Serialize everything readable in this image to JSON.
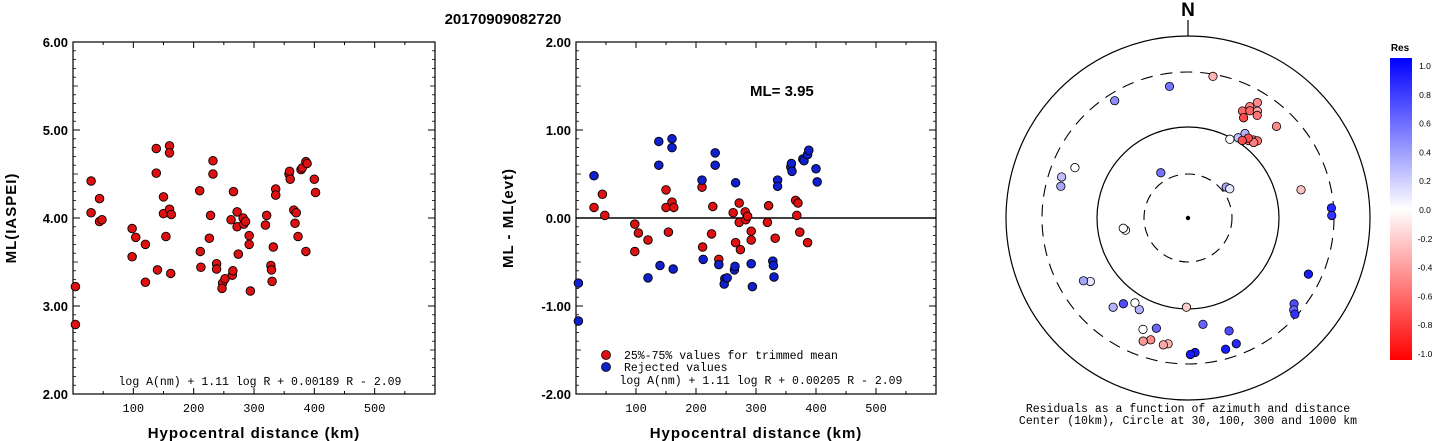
{
  "title": "20170909082720",
  "colors": {
    "accepted": "#dd1111",
    "rejected": "#1020cc",
    "axis": "#000000"
  },
  "chart_data": [
    {
      "type": "scatter",
      "xlabel": "Hypocentral distance (km)",
      "ylabel": "ML(IASPEI)",
      "xlim": [
        0,
        600
      ],
      "ylim": [
        2.0,
        6.0
      ],
      "xticks": [
        "100",
        "200",
        "300",
        "400",
        "500"
      ],
      "yticks": [
        "2.00",
        "3.00",
        "4.00",
        "5.00",
        "6.00"
      ],
      "formula": "log A(nm) + 1.11 log R + 0.00189 R - 2.09",
      "series": [
        {
          "points": [
            [
              4,
              3.22
            ],
            [
              4,
              2.79
            ],
            [
              30,
              4.42
            ],
            [
              30,
              4.06
            ],
            [
              44,
              4.22
            ],
            [
              44,
              3.96
            ],
            [
              48,
              3.98
            ],
            [
              98,
              3.88
            ],
            [
              98,
              3.56
            ],
            [
              104,
              3.78
            ],
            [
              120,
              3.7
            ],
            [
              120,
              3.27
            ],
            [
              138,
              4.79
            ],
            [
              138,
              4.51
            ],
            [
              140,
              3.41
            ],
            [
              150,
              4.24
            ],
            [
              150,
              4.05
            ],
            [
              154,
              3.79
            ],
            [
              160,
              4.82
            ],
            [
              160,
              4.74
            ],
            [
              160,
              4.1
            ],
            [
              163,
              4.04
            ],
            [
              162,
              3.37
            ],
            [
              210,
              4.31
            ],
            [
              211,
              3.62
            ],
            [
              212,
              3.44
            ],
            [
              228,
              4.03
            ],
            [
              226,
              3.77
            ],
            [
              232,
              4.65
            ],
            [
              232,
              4.5
            ],
            [
              238,
              3.48
            ],
            [
              238,
              3.42
            ],
            [
              248,
              3.26
            ],
            [
              247,
              3.2
            ],
            [
              252,
              3.31
            ],
            [
              262,
              3.98
            ],
            [
              264,
              3.35
            ],
            [
              265,
              3.4
            ],
            [
              266,
              4.3
            ],
            [
              272,
              4.07
            ],
            [
              272,
              3.9
            ],
            [
              274,
              3.59
            ],
            [
              282,
              4.0
            ],
            [
              283,
              3.93
            ],
            [
              286,
              3.96
            ],
            [
              292,
              3.8
            ],
            [
              292,
              3.7
            ],
            [
              294,
              3.17
            ],
            [
              319,
              3.92
            ],
            [
              321,
              4.03
            ],
            [
              328,
              3.46
            ],
            [
              329,
              3.41
            ],
            [
              330,
              3.28
            ],
            [
              336,
              4.33
            ],
            [
              336,
              4.26
            ],
            [
              332,
              3.67
            ],
            [
              358,
              4.5
            ],
            [
              359,
              4.53
            ],
            [
              360,
              4.44
            ],
            [
              366,
              4.09
            ],
            [
              370,
              4.06
            ],
            [
              368,
              3.94
            ],
            [
              373,
              3.79
            ],
            [
              378,
              4.55
            ],
            [
              380,
              4.57
            ],
            [
              386,
              4.64
            ],
            [
              388,
              4.62
            ],
            [
              386,
              3.62
            ],
            [
              400,
              4.44
            ],
            [
              402,
              4.29
            ]
          ]
        }
      ]
    },
    {
      "type": "scatter",
      "xlabel": "Hypocentral distance (km)",
      "ylabel": "ML - ML(evt)",
      "xlim": [
        0,
        600
      ],
      "ylim": [
        -2.0,
        2.0
      ],
      "xticks": [
        "100",
        "200",
        "300",
        "400",
        "500"
      ],
      "yticks": [
        "-2.00",
        "-1.00",
        "0.00",
        "1.00",
        "2.00"
      ],
      "annotation": "ML= 3.95",
      "formula": "log A(nm) + 1.11 log R + 0.00205 R - 2.09",
      "legend": [
        "25%-75% values for trimmed mean",
        "Rejected values"
      ],
      "series": [
        {
          "name": "25%-75% values for trimmed mean",
          "points": [
            [
              30,
              0.12
            ],
            [
              44,
              0.27
            ],
            [
              48,
              0.03
            ],
            [
              98,
              -0.07
            ],
            [
              98,
              -0.38
            ],
            [
              104,
              -0.17
            ],
            [
              120,
              -0.25
            ],
            [
              150,
              0.32
            ],
            [
              150,
              0.12
            ],
            [
              154,
              -0.16
            ],
            [
              160,
              0.18
            ],
            [
              163,
              0.12
            ],
            [
              210,
              0.35
            ],
            [
              211,
              -0.33
            ],
            [
              228,
              0.13
            ],
            [
              226,
              -0.18
            ],
            [
              238,
              -0.47
            ],
            [
              262,
              0.06
            ],
            [
              266,
              -0.28
            ],
            [
              272,
              0.17
            ],
            [
              272,
              -0.05
            ],
            [
              274,
              -0.36
            ],
            [
              282,
              0.07
            ],
            [
              283,
              -0.02
            ],
            [
              286,
              0.02
            ],
            [
              292,
              -0.15
            ],
            [
              292,
              -0.25
            ],
            [
              319,
              -0.05
            ],
            [
              321,
              0.14
            ],
            [
              332,
              -0.23
            ],
            [
              366,
              0.2
            ],
            [
              370,
              0.17
            ],
            [
              368,
              0.03
            ],
            [
              373,
              -0.16
            ],
            [
              386,
              -0.28
            ]
          ]
        },
        {
          "name": "Rejected values",
          "points": [
            [
              4,
              -0.74
            ],
            [
              4,
              -1.17
            ],
            [
              30,
              0.48
            ],
            [
              138,
              0.87
            ],
            [
              138,
              0.6
            ],
            [
              140,
              -0.54
            ],
            [
              120,
              -0.68
            ],
            [
              160,
              0.9
            ],
            [
              160,
              0.8
            ],
            [
              162,
              -0.58
            ],
            [
              210,
              0.43
            ],
            [
              212,
              -0.47
            ],
            [
              232,
              0.74
            ],
            [
              232,
              0.6
            ],
            [
              238,
              -0.53
            ],
            [
              248,
              -0.69
            ],
            [
              247,
              -0.75
            ],
            [
              252,
              -0.68
            ],
            [
              264,
              -0.59
            ],
            [
              265,
              -0.55
            ],
            [
              266,
              0.4
            ],
            [
              292,
              -0.52
            ],
            [
              294,
              -0.78
            ],
            [
              328,
              -0.49
            ],
            [
              329,
              -0.54
            ],
            [
              330,
              -0.67
            ],
            [
              336,
              0.43
            ],
            [
              336,
              0.36
            ],
            [
              358,
              0.58
            ],
            [
              359,
              0.62
            ],
            [
              360,
              0.53
            ],
            [
              378,
              0.67
            ],
            [
              380,
              0.65
            ],
            [
              386,
              0.72
            ],
            [
              388,
              0.77
            ],
            [
              400,
              0.56
            ],
            [
              402,
              0.41
            ]
          ]
        }
      ]
    },
    {
      "type": "scatter",
      "polar": true,
      "title": "N",
      "caption_lines": [
        "Residuals as a function of azimuth and distance",
        "Center (10km), Circle at 30, 100, 300 and 1000 km"
      ],
      "colorbar": {
        "title": "Res",
        "ticks": [
          "1.0",
          "0.8",
          "0.6",
          "0.4",
          "0.2",
          "0.0",
          "-0.2",
          "-0.4",
          "-0.6",
          "-0.8",
          "-1.0"
        ]
      },
      "points": [
        {
          "az": 10,
          "r": 0.79,
          "res": -0.3
        },
        {
          "az": 352,
          "r": 0.73,
          "res": 0.55
        },
        {
          "az": 27,
          "r": 0.66,
          "res": -0.6
        },
        {
          "az": 29,
          "r": 0.7,
          "res": -0.5
        },
        {
          "az": 31,
          "r": 0.74,
          "res": -0.45
        },
        {
          "az": 30,
          "r": 0.68,
          "res": -0.6
        },
        {
          "az": 33,
          "r": 0.7,
          "res": -0.35
        },
        {
          "az": 29,
          "r": 0.63,
          "res": -0.7
        },
        {
          "az": 34,
          "r": 0.68,
          "res": -0.55
        },
        {
          "az": 44,
          "r": 0.7,
          "res": -0.45
        },
        {
          "az": 34,
          "r": 0.56,
          "res": 0.3
        },
        {
          "az": 32,
          "r": 0.52,
          "res": 0.25
        },
        {
          "az": 38,
          "r": 0.54,
          "res": -0.6
        },
        {
          "az": 40,
          "r": 0.56,
          "res": -0.6
        },
        {
          "az": 42,
          "r": 0.57,
          "res": -0.55
        },
        {
          "az": 41,
          "r": 0.55,
          "res": -0.5
        },
        {
          "az": 37,
          "r": 0.55,
          "res": -0.7
        },
        {
          "az": 35,
          "r": 0.52,
          "res": -0.7
        },
        {
          "az": 28,
          "r": 0.49,
          "res": 0.0
        },
        {
          "az": 51,
          "r": 0.27,
          "res": 0.35
        },
        {
          "az": 55,
          "r": 0.28,
          "res": 0.1
        },
        {
          "az": 76,
          "r": 0.64,
          "res": -0.25
        },
        {
          "az": 86,
          "r": 0.79,
          "res": 0.85
        },
        {
          "az": 89,
          "r": 0.79,
          "res": 0.8
        },
        {
          "az": 115,
          "r": 0.73,
          "res": 0.9
        },
        {
          "az": 129,
          "r": 0.75,
          "res": 0.7
        },
        {
          "az": 131,
          "r": 0.77,
          "res": 0.6
        },
        {
          "az": 132,
          "r": 0.79,
          "res": 0.8
        },
        {
          "az": 160,
          "r": 0.66,
          "res": 0.7
        },
        {
          "az": 159,
          "r": 0.74,
          "res": 0.85
        },
        {
          "az": 164,
          "r": 0.75,
          "res": 0.9
        },
        {
          "az": 177,
          "r": 0.74,
          "res": 0.9
        },
        {
          "az": 179,
          "r": 0.75,
          "res": 0.9
        },
        {
          "az": 172,
          "r": 0.59,
          "res": 0.6
        },
        {
          "az": 181,
          "r": 0.49,
          "res": -0.2
        },
        {
          "az": 189,
          "r": 0.7,
          "res": -0.3
        },
        {
          "az": 191,
          "r": 0.71,
          "res": -0.35
        },
        {
          "az": 196,
          "r": 0.63,
          "res": 0.6
        },
        {
          "az": 197,
          "r": 0.7,
          "res": -0.45
        },
        {
          "az": 200,
          "r": 0.72,
          "res": -0.4
        },
        {
          "az": 202,
          "r": 0.66,
          "res": 0.0
        },
        {
          "az": 208,
          "r": 0.57,
          "res": 0.3
        },
        {
          "az": 212,
          "r": 0.55,
          "res": 0.0
        },
        {
          "az": 217,
          "r": 0.59,
          "res": 0.7
        },
        {
          "az": 220,
          "r": 0.64,
          "res": 0.3
        },
        {
          "az": 237,
          "r": 0.64,
          "res": 0.1
        },
        {
          "az": 239,
          "r": 0.67,
          "res": 0.35
        },
        {
          "az": 259,
          "r": 0.35,
          "res": 0.0
        },
        {
          "az": 261,
          "r": 0.36,
          "res": 0.0
        },
        {
          "az": 284,
          "r": 0.72,
          "res": 0.35
        },
        {
          "az": 288,
          "r": 0.73,
          "res": 0.25
        },
        {
          "az": 294,
          "r": 0.68,
          "res": 0.0
        },
        {
          "az": 329,
          "r": 0.29,
          "res": 0.55
        },
        {
          "az": 328,
          "r": 0.76,
          "res": 0.45
        }
      ]
    }
  ]
}
